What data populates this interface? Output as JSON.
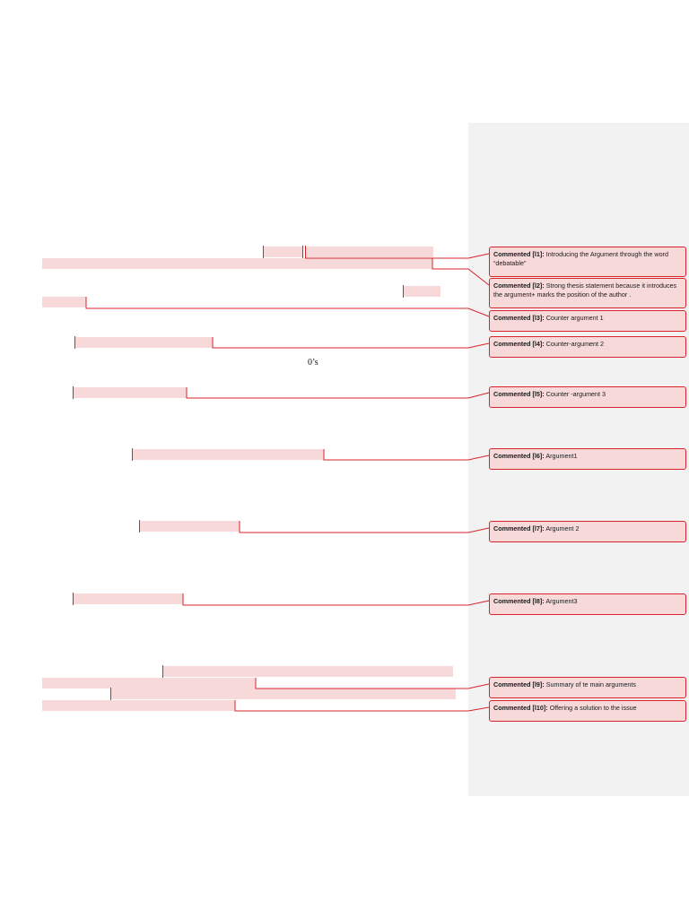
{
  "document": {
    "stray_text": "0’s"
  },
  "comments": [
    {
      "label": "Commented [l1]:",
      "text": "Introducing the Argument through the word “debatable”"
    },
    {
      "label": "Commented [l2]:",
      "text": "Strong thesis statement because it introduces the argument+ marks the position of the author ."
    },
    {
      "label": "Commented [l3]:",
      "text": "Counter argument 1"
    },
    {
      "label": "Commented [l4]:",
      "text": "Counter-argument 2"
    },
    {
      "label": "Commented [l5]:",
      "text": "Counter -argument 3"
    },
    {
      "label": "Commented [l6]:",
      "text": "Argument1"
    },
    {
      "label": "Commented [l7]:",
      "text": "Argument 2"
    },
    {
      "label": "Commented [l8]:",
      "text": "Argument3"
    },
    {
      "label": "Commented [l9]:",
      "text": "Summary of te main arguments"
    },
    {
      "label": "Commented [l10]:",
      "text": "Offering a solution to the issue"
    }
  ],
  "colors": {
    "highlight": "#f7d9da",
    "markup_red": "#d8232a",
    "comment_pane": "#f2f2f2"
  }
}
